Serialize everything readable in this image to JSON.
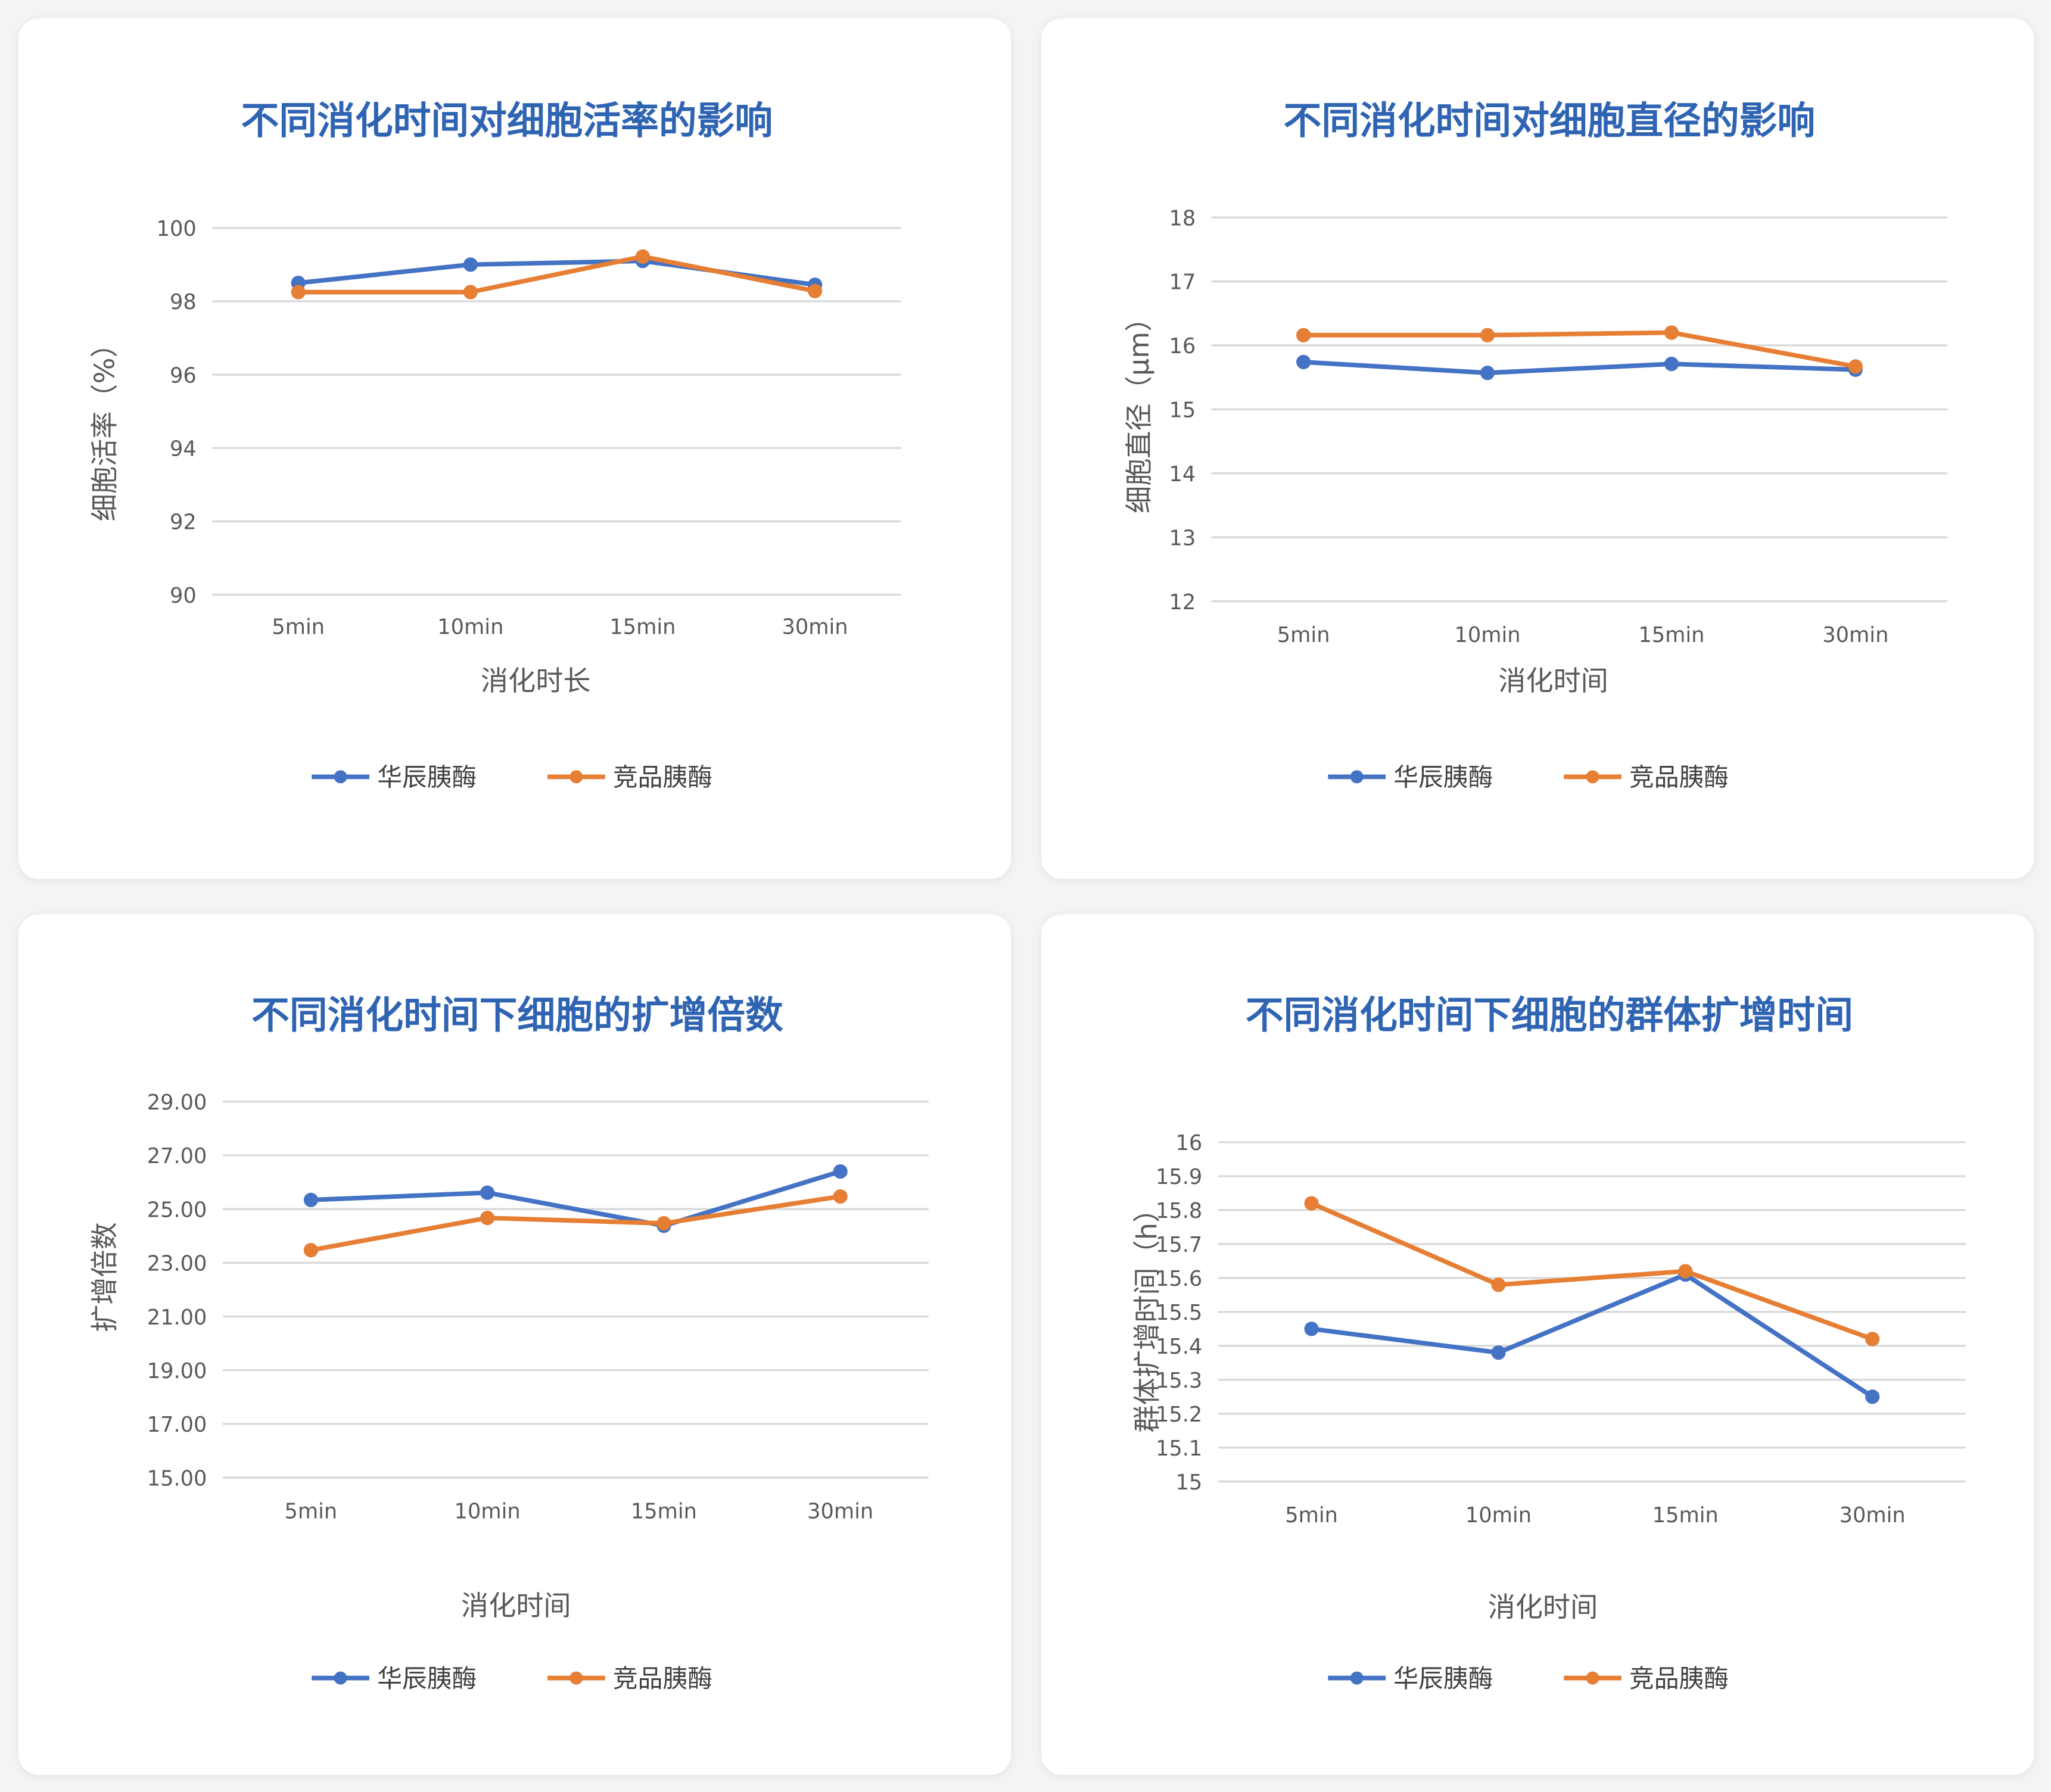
{
  "colors": {
    "series_1": "#4472c4",
    "series_2": "#e67e34",
    "title": "#2f64b3",
    "grid": "#d9d9d9"
  },
  "chart_data": [
    {
      "type": "line",
      "title": "不同消化时间对细胞活率的影响",
      "xlabel": "消化时长",
      "ylabel": "细胞活率（%）",
      "categories": [
        "5min",
        "10min",
        "15min",
        "30min"
      ],
      "ylim": [
        90,
        100
      ],
      "yticks": [
        90,
        92,
        94,
        96,
        98,
        100
      ],
      "ytick_labels": [
        "90",
        "92",
        "94",
        "96",
        "98",
        "100"
      ],
      "grid": true,
      "legend": "bottom",
      "series": [
        {
          "name": "华辰胰酶",
          "values": [
            98.5,
            99.0,
            99.1,
            98.45
          ]
        },
        {
          "name": "竞品胰酶",
          "values": [
            98.25,
            98.25,
            99.22,
            98.28
          ]
        }
      ]
    },
    {
      "type": "line",
      "title": "不同消化时间对细胞直径的影响",
      "xlabel": "消化时间",
      "ylabel": "细胞直径（μm）",
      "categories": [
        "5min",
        "10min",
        "15min",
        "30min"
      ],
      "ylim": [
        12,
        18
      ],
      "yticks": [
        12,
        13,
        14,
        15,
        16,
        17,
        18
      ],
      "ytick_labels": [
        "12",
        "13",
        "14",
        "15",
        "16",
        "17",
        "18"
      ],
      "grid": true,
      "legend": "bottom",
      "series": [
        {
          "name": "华辰胰酶",
          "values": [
            15.74,
            15.57,
            15.71,
            15.62
          ]
        },
        {
          "name": "竞品胰酶",
          "values": [
            16.16,
            16.16,
            16.2,
            15.67
          ]
        }
      ]
    },
    {
      "type": "line",
      "title": "不同消化时间下细胞的扩增倍数",
      "xlabel": "消化时间",
      "ylabel": "扩增倍数",
      "categories": [
        "5min",
        "10min",
        "15min",
        "30min"
      ],
      "ylim": [
        15,
        29
      ],
      "yticks": [
        15,
        17,
        19,
        21,
        23,
        25,
        27,
        29
      ],
      "ytick_labels": [
        "15.00",
        "17.00",
        "19.00",
        "21.00",
        "23.00",
        "25.00",
        "27.00",
        "29.00"
      ],
      "grid": true,
      "legend": "bottom",
      "series": [
        {
          "name": "华辰胰酶",
          "values": [
            25.34,
            25.61,
            24.38,
            26.4
          ]
        },
        {
          "name": "竞品胰酶",
          "values": [
            23.47,
            24.67,
            24.47,
            25.47
          ]
        }
      ]
    },
    {
      "type": "line",
      "title": "不同消化时间下细胞的群体扩增时间",
      "xlabel": "消化时间",
      "ylabel": "群体扩增时间（h）",
      "categories": [
        "5min",
        "10min",
        "15min",
        "30min"
      ],
      "ylim": [
        15,
        16
      ],
      "yticks": [
        15,
        15.1,
        15.2,
        15.3,
        15.4,
        15.5,
        15.6,
        15.7,
        15.8,
        15.9,
        16
      ],
      "ytick_labels": [
        "15",
        "15.1",
        "15.2",
        "15.3",
        "15.4",
        "15.5",
        "15.6",
        "15.7",
        "15.8",
        "15.9",
        "16"
      ],
      "grid": true,
      "legend": "bottom",
      "series": [
        {
          "name": "华辰胰酶",
          "values": [
            15.45,
            15.38,
            15.61,
            15.25
          ]
        },
        {
          "name": "竞品胰酶",
          "values": [
            15.82,
            15.58,
            15.62,
            15.42
          ]
        }
      ]
    }
  ]
}
